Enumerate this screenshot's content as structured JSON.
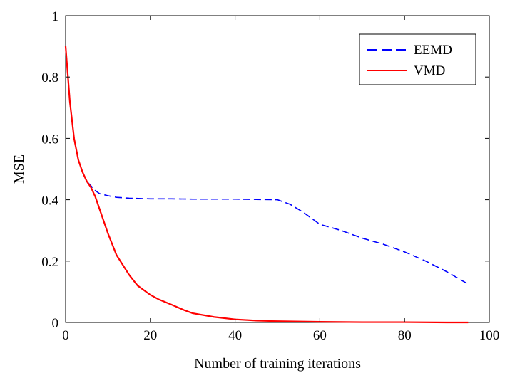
{
  "chart_data": {
    "type": "line",
    "xlabel": "Number of training iterations",
    "ylabel": "MSE",
    "xlim": [
      0,
      100
    ],
    "ylim": [
      0,
      1
    ],
    "x_ticks": [
      "0",
      "20",
      "40",
      "60",
      "80",
      "100"
    ],
    "y_ticks": [
      "0",
      "0.2",
      "0.4",
      "0.6",
      "0.8",
      "1"
    ],
    "grid": false,
    "legend_position": "top-right",
    "series": [
      {
        "name": "EEMD",
        "color": "#0000ff",
        "style": "dashed",
        "x": [
          0,
          1,
          2,
          3,
          4,
          5,
          6,
          7,
          8,
          10,
          12,
          15,
          20,
          25,
          30,
          35,
          40,
          45,
          50,
          53,
          56,
          60,
          65,
          70,
          75,
          80,
          85,
          90,
          95
        ],
        "y": [
          0.9,
          0.72,
          0.6,
          0.53,
          0.49,
          0.46,
          0.445,
          0.43,
          0.42,
          0.413,
          0.408,
          0.405,
          0.403,
          0.403,
          0.402,
          0.402,
          0.402,
          0.401,
          0.4,
          0.385,
          0.36,
          0.32,
          0.3,
          0.275,
          0.255,
          0.23,
          0.2,
          0.165,
          0.125
        ]
      },
      {
        "name": "VMD",
        "color": "#ff0000",
        "style": "solid",
        "x": [
          0,
          1,
          2,
          3,
          4,
          5,
          6,
          7,
          8,
          10,
          12,
          15,
          17,
          20,
          22,
          25,
          28,
          30,
          35,
          40,
          45,
          50,
          60,
          70,
          80,
          90,
          95
        ],
        "y": [
          0.9,
          0.72,
          0.6,
          0.53,
          0.49,
          0.46,
          0.44,
          0.41,
          0.37,
          0.29,
          0.22,
          0.155,
          0.12,
          0.09,
          0.075,
          0.058,
          0.04,
          0.03,
          0.018,
          0.01,
          0.006,
          0.004,
          0.002,
          0.001,
          0.001,
          0.0,
          0.0
        ]
      }
    ]
  }
}
